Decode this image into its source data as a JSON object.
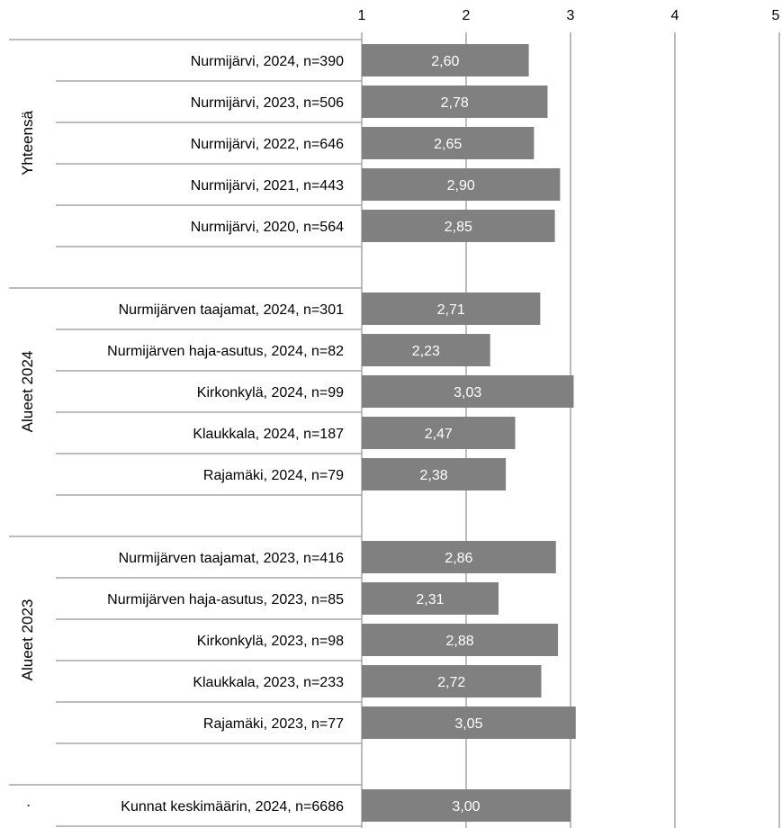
{
  "colors": {
    "bar": "#808080",
    "bar_label": "#ffffff",
    "grid": "#a6a6a6",
    "group_line": "#a6a6a6",
    "text": "#000000"
  },
  "chart_data": {
    "type": "bar",
    "orientation": "horizontal",
    "xlim": [
      1,
      5
    ],
    "xticks": [
      "1",
      "2",
      "3",
      "4",
      "5"
    ],
    "grid": true,
    "legend": "none",
    "groups": [
      {
        "name": "Yhteensä",
        "rows": [
          {
            "label": "Nurmijärvi, 2024, n=390",
            "value": 2.6,
            "value_label": "2,60"
          },
          {
            "label": "Nurmijärvi, 2023, n=506",
            "value": 2.78,
            "value_label": "2,78"
          },
          {
            "label": "Nurmijärvi, 2022, n=646",
            "value": 2.65,
            "value_label": "2,65"
          },
          {
            "label": "Nurmijärvi, 2021, n=443",
            "value": 2.9,
            "value_label": "2,90"
          },
          {
            "label": "Nurmijärvi, 2020, n=564",
            "value": 2.85,
            "value_label": "2,85"
          }
        ]
      },
      {
        "name": "Alueet 2024",
        "rows": [
          {
            "label": "Nurmijärven taajamat, 2024, n=301",
            "value": 2.71,
            "value_label": "2,71"
          },
          {
            "label": "Nurmijärven haja-asutus, 2024, n=82",
            "value": 2.23,
            "value_label": "2,23"
          },
          {
            "label": "Kirkonkylä, 2024, n=99",
            "value": 3.03,
            "value_label": "3,03"
          },
          {
            "label": "Klaukkala, 2024, n=187",
            "value": 2.47,
            "value_label": "2,47"
          },
          {
            "label": "Rajamäki, 2024, n=79",
            "value": 2.38,
            "value_label": "2,38"
          }
        ]
      },
      {
        "name": "Alueet 2023",
        "rows": [
          {
            "label": "Nurmijärven taajamat, 2023, n=416",
            "value": 2.86,
            "value_label": "2,86"
          },
          {
            "label": "Nurmijärven haja-asutus, 2023, n=85",
            "value": 2.31,
            "value_label": "2,31"
          },
          {
            "label": "Kirkonkylä, 2023, n=98",
            "value": 2.88,
            "value_label": "2,88"
          },
          {
            "label": "Klaukkala, 2023, n=233",
            "value": 2.72,
            "value_label": "2,72"
          },
          {
            "label": "Rajamäki, 2023, n=77",
            "value": 3.05,
            "value_label": "3,05"
          }
        ]
      },
      {
        "name": "·",
        "rows": [
          {
            "label": "Kunnat keskimäärin, 2024, n=6686",
            "value": 3.0,
            "value_label": "3,00"
          }
        ]
      }
    ]
  }
}
